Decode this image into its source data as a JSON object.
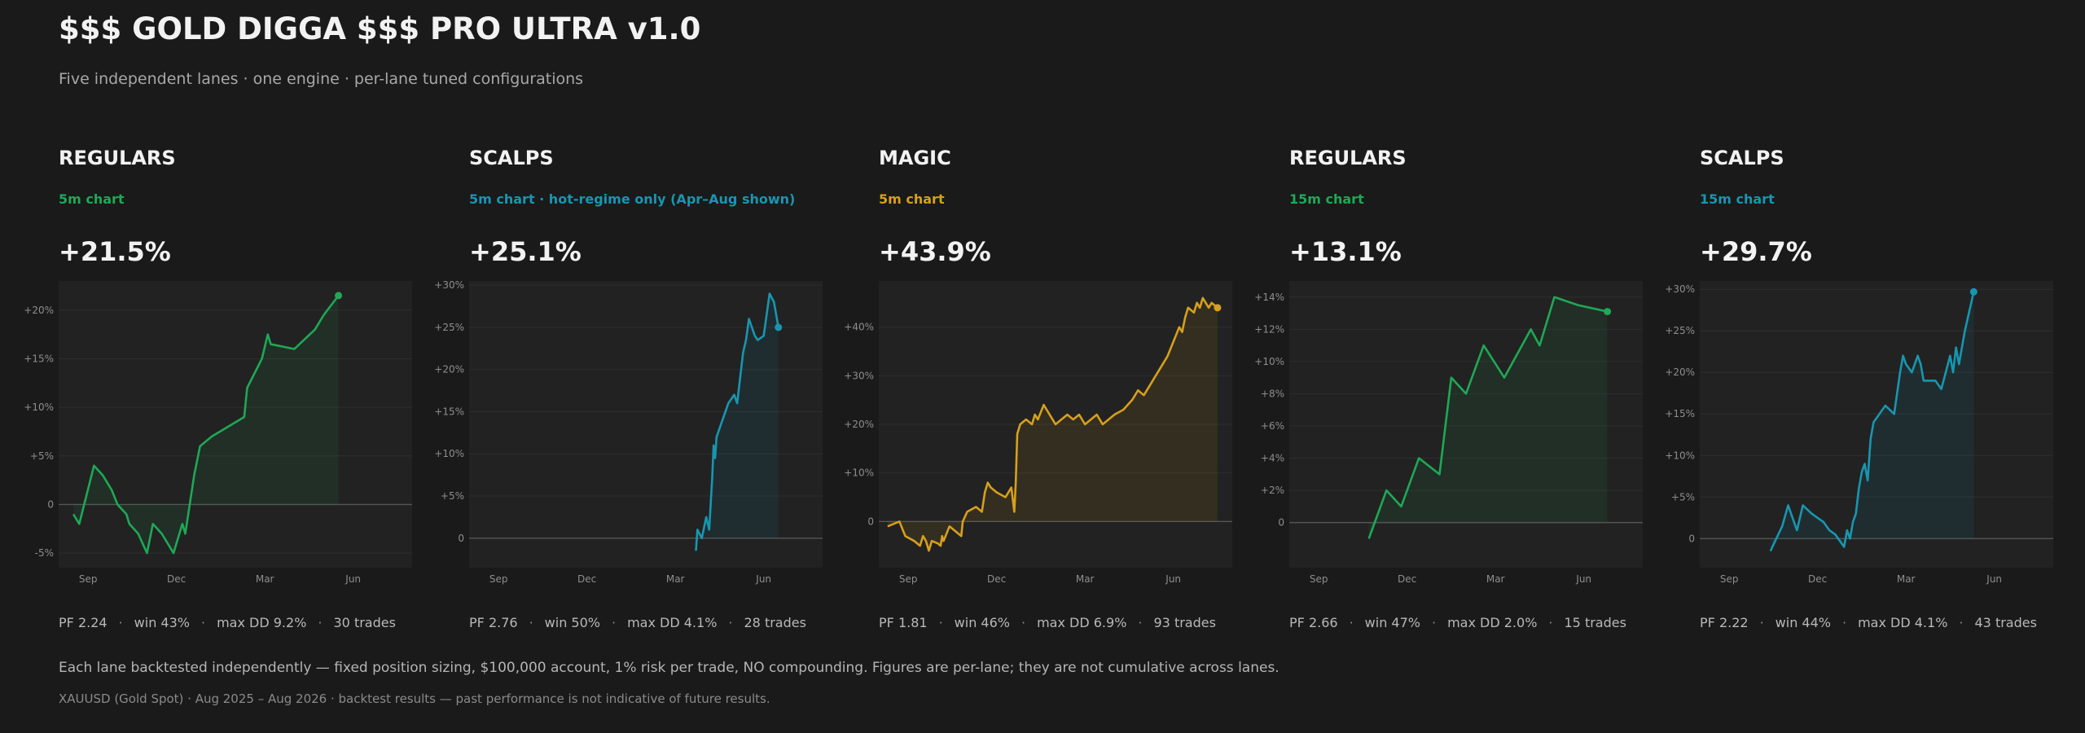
{
  "header": {
    "title": "$$$ GOLD DIGGA $$$ PRO ULTRA v1.0",
    "subtitle": "Five independent lanes · one engine · per-lane tuned configurations"
  },
  "lanes": [
    {
      "name": "REGULARS",
      "tag": "5m chart",
      "ret": "+21.5%",
      "color": "#1fa855",
      "stats": {
        "pf": "PF 2.24",
        "win": "win 43%",
        "dd": "max DD 9.2%",
        "trades": "30 trades"
      }
    },
    {
      "name": "SCALPS",
      "tag": "5m chart · hot-regime only (Apr–Aug shown)",
      "ret": "+25.1%",
      "color": "#1896b0",
      "stats": {
        "pf": "PF 2.76",
        "win": "win 50%",
        "dd": "max DD 4.1%",
        "trades": "28 trades"
      }
    },
    {
      "name": "MAGIC",
      "tag": "5m chart",
      "ret": "+43.9%",
      "color": "#d6a01c",
      "stats": {
        "pf": "PF 1.81",
        "win": "win 46%",
        "dd": "max DD 6.9%",
        "trades": "93 trades"
      }
    },
    {
      "name": "REGULARS",
      "tag": "15m chart",
      "ret": "+13.1%",
      "color": "#1fa855",
      "stats": {
        "pf": "PF 2.66",
        "win": "win 47%",
        "dd": "max DD 2.0%",
        "trades": "15 trades"
      }
    },
    {
      "name": "SCALPS",
      "tag": "15m chart",
      "ret": "+29.7%",
      "color": "#1896b0",
      "stats": {
        "pf": "PF 2.22",
        "win": "win 44%",
        "dd": "max DD 4.1%",
        "trades": "43 trades"
      }
    }
  ],
  "notes": {
    "disclaimer": "Each lane backtested independently — fixed position sizing, $100,000 account, 1% risk per trade, NO compounding. Figures are per-lane; they are not cumulative across lanes.",
    "footer": "XAUUSD (Gold Spot) · Aug 2025 – Aug 2026 · backtest results — past performance is not indicative of future results."
  },
  "chart_data": [
    {
      "type": "area",
      "x_ticks": [
        "Sep",
        "Dec",
        "Mar",
        "Jun"
      ],
      "y_ticks": [
        "-5%",
        "0",
        "+5%",
        "+10%",
        "+15%",
        "+20%"
      ],
      "xlim": [
        0,
        12
      ],
      "ylim": [
        -6.5,
        23
      ],
      "y_tick_values": [
        -5,
        0,
        5,
        10,
        15,
        20
      ],
      "series": [
        {
          "x": [
            0.5,
            0.7,
            1.2,
            1.5,
            1.8,
            2.0,
            2.3,
            2.4,
            2.7,
            3.0,
            3.2,
            3.5,
            3.9,
            4.2,
            4.3,
            4.4,
            4.6,
            4.8,
            5.2,
            6.3,
            6.4,
            6.9,
            7.1,
            7.2,
            8.0,
            8.7,
            9.0,
            9.5
          ],
          "y": [
            -1,
            -2,
            4,
            3,
            1.5,
            0,
            -1,
            -2,
            -3,
            -5,
            -2,
            -3,
            -5,
            -2,
            -3,
            -1,
            3,
            6,
            7,
            9,
            12,
            15,
            17.5,
            16.5,
            16,
            18,
            19.5,
            21.5
          ]
        }
      ]
    },
    {
      "type": "area",
      "x_ticks": [
        "Sep",
        "Dec",
        "Mar",
        "Jun"
      ],
      "y_ticks": [
        "0",
        "+5%",
        "+10%",
        "+15%",
        "+20%",
        "+25%",
        "+30%"
      ],
      "xlim": [
        0,
        12
      ],
      "ylim": [
        -3.5,
        30.5
      ],
      "y_tick_values": [
        0,
        5,
        10,
        15,
        20,
        25,
        30
      ],
      "series": [
        {
          "x": [
            7.7,
            7.75,
            7.9,
            8.05,
            8.15,
            8.25,
            8.3,
            8.35,
            8.4,
            8.5,
            8.6,
            8.7,
            8.8,
            9.0,
            9.1,
            9.2,
            9.3,
            9.4,
            9.5,
            9.7,
            9.8,
            10.0,
            10.2,
            10.35,
            10.5
          ],
          "y": [
            -1.5,
            1,
            0,
            2.5,
            1,
            7,
            11,
            9.5,
            12,
            13,
            14,
            15,
            16,
            17,
            16,
            19,
            22,
            23.5,
            26,
            24,
            23.5,
            24,
            29,
            28,
            25
          ]
        }
      ]
    },
    {
      "type": "area",
      "x_ticks": [
        "Sep",
        "Dec",
        "Mar",
        "Jun"
      ],
      "y_ticks": [
        "0",
        "+10%",
        "+20%",
        "+30%",
        "+40%"
      ],
      "xlim": [
        0,
        12
      ],
      "ylim": [
        -9.5,
        49.5
      ],
      "y_tick_values": [
        0,
        10,
        20,
        30,
        40
      ],
      "series": [
        {
          "x": [
            0.3,
            0.7,
            0.9,
            1.2,
            1.4,
            1.5,
            1.6,
            1.7,
            1.8,
            2.0,
            2.1,
            2.15,
            2.2,
            2.4,
            2.6,
            2.8,
            2.85,
            3.0,
            3.3,
            3.5,
            3.6,
            3.7,
            3.8,
            4.0,
            4.3,
            4.5,
            4.6,
            4.65,
            4.7,
            4.8,
            5.0,
            5.2,
            5.3,
            5.4,
            5.6,
            5.8,
            6.0,
            6.2,
            6.4,
            6.6,
            6.8,
            7.0,
            7.2,
            7.4,
            7.6,
            8.0,
            8.3,
            8.6,
            8.8,
            9.0,
            9.2,
            9.4,
            9.6,
            9.8,
            10.0,
            10.2,
            10.3,
            10.4,
            10.5,
            10.7,
            10.8,
            10.9,
            11.0,
            11.1,
            11.2,
            11.3,
            11.5
          ],
          "y": [
            -1,
            0,
            -3,
            -4,
            -5,
            -3,
            -4,
            -6,
            -4,
            -4.5,
            -5,
            -3,
            -4,
            -1,
            -2,
            -3,
            0,
            2,
            3,
            2,
            6,
            8,
            7,
            6,
            5,
            7,
            2,
            8,
            18,
            20,
            21,
            20,
            22,
            21,
            24,
            22,
            20,
            21,
            22,
            21,
            22,
            20,
            21,
            22,
            20,
            22,
            23,
            25,
            27,
            26,
            28,
            30,
            32,
            34,
            37,
            40,
            39,
            42,
            44,
            43,
            45,
            44,
            46,
            45,
            44,
            45,
            44
          ]
        }
      ]
    },
    {
      "type": "area",
      "x_ticks": [
        "Sep",
        "Dec",
        "Mar",
        "Jun"
      ],
      "y_ticks": [
        "0",
        "+2%",
        "+4%",
        "+6%",
        "+8%",
        "+10%",
        "+12%",
        "+14%"
      ],
      "xlim": [
        0,
        12
      ],
      "ylim": [
        -2.8,
        15
      ],
      "y_tick_values": [
        0,
        2,
        4,
        6,
        8,
        10,
        12,
        14
      ],
      "series": [
        {
          "x": [
            2.7,
            3.3,
            3.8,
            4.4,
            5.1,
            5.5,
            6.0,
            6.6,
            7.3,
            8.2,
            8.5,
            9.0,
            9.8,
            10.8
          ],
          "y": [
            -1,
            2,
            1,
            4,
            3,
            9,
            8,
            11,
            9,
            12,
            11,
            14,
            13.5,
            13.1
          ]
        }
      ]
    },
    {
      "type": "area",
      "x_ticks": [
        "Sep",
        "Dec",
        "Mar",
        "Jun"
      ],
      "y_ticks": [
        "0",
        "+5%",
        "+10%",
        "+15%",
        "+20%",
        "+25%",
        "+30%"
      ],
      "xlim": [
        0,
        12
      ],
      "ylim": [
        -3.5,
        31
      ],
      "y_tick_values": [
        0,
        5,
        10,
        15,
        20,
        25,
        30
      ],
      "series": [
        {
          "x": [
            2.4,
            2.8,
            3.0,
            3.2,
            3.3,
            3.5,
            3.8,
            4.2,
            4.4,
            4.6,
            4.9,
            5.0,
            5.1,
            5.2,
            5.3,
            5.4,
            5.5,
            5.6,
            5.7,
            5.8,
            5.9,
            6.1,
            6.3,
            6.6,
            6.8,
            6.9,
            7.0,
            7.2,
            7.4,
            7.5,
            7.6,
            7.7,
            7.8,
            8.0,
            8.2,
            8.5,
            8.6,
            8.7,
            8.8,
            9.0,
            9.3
          ],
          "y": [
            -1.5,
            1.5,
            4,
            2,
            1,
            4,
            3,
            2,
            1,
            0.5,
            -1,
            1,
            0,
            2,
            3,
            6,
            8,
            9,
            7,
            12,
            14,
            15,
            16,
            15,
            20,
            22,
            21,
            20,
            22,
            21,
            19,
            19,
            19,
            19,
            18,
            22,
            20,
            23,
            21,
            25,
            29.7
          ]
        }
      ]
    }
  ]
}
